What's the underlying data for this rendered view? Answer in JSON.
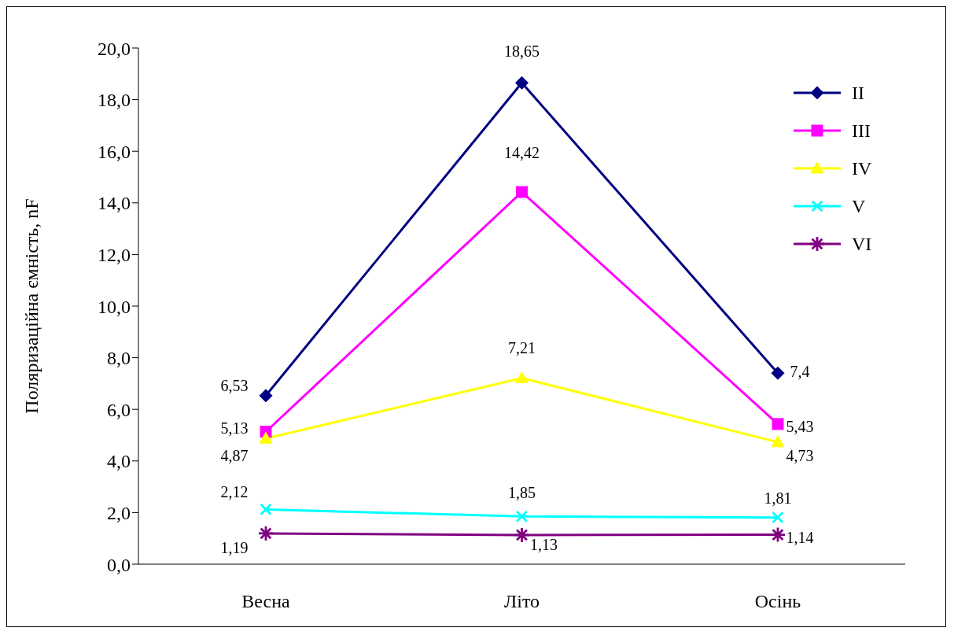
{
  "chart_data": {
    "type": "line",
    "ylabel": "Поляризаційна ємність, nF",
    "categories": [
      "Весна",
      "Літо",
      "Осінь"
    ],
    "series": [
      {
        "name": "II",
        "color": "#000080",
        "marker": "diamond",
        "values": [
          6.53,
          18.65,
          7.4
        ],
        "value_labels": [
          "6,53",
          "18,65",
          "7,4"
        ]
      },
      {
        "name": "III",
        "color": "#ff00ff",
        "marker": "square",
        "values": [
          5.13,
          14.42,
          5.43
        ],
        "value_labels": [
          "5,13",
          "14,42",
          "5,43"
        ]
      },
      {
        "name": "IV",
        "color": "#ffff00",
        "marker": "triangle",
        "values": [
          4.87,
          7.21,
          4.73
        ],
        "value_labels": [
          "4,87",
          "7,21",
          "4,73"
        ]
      },
      {
        "name": "V",
        "color": "#00ffff",
        "marker": "cross",
        "values": [
          2.12,
          1.85,
          1.81
        ],
        "value_labels": [
          "2,12",
          "1,85",
          "1,81"
        ]
      },
      {
        "name": "VI",
        "color": "#800080",
        "marker": "star",
        "values": [
          1.19,
          1.13,
          1.14
        ],
        "value_labels": [
          "1,19",
          "1,13",
          "1,14"
        ]
      }
    ],
    "ylim": [
      0,
      20
    ],
    "yticks": [
      {
        "value": 0,
        "label": "0,0"
      },
      {
        "value": 2,
        "label": "2,0"
      },
      {
        "value": 4,
        "label": "4,0"
      },
      {
        "value": 6,
        "label": "6,0"
      },
      {
        "value": 8,
        "label": "8,0"
      },
      {
        "value": 10,
        "label": "10,0"
      },
      {
        "value": 12,
        "label": "12,0"
      },
      {
        "value": 14,
        "label": "14,0"
      },
      {
        "value": 16,
        "label": "16,0"
      },
      {
        "value": 18,
        "label": "18,0"
      },
      {
        "value": 20,
        "label": "20,0"
      }
    ],
    "grid": false,
    "legend": "top right",
    "line_style": "solid"
  }
}
